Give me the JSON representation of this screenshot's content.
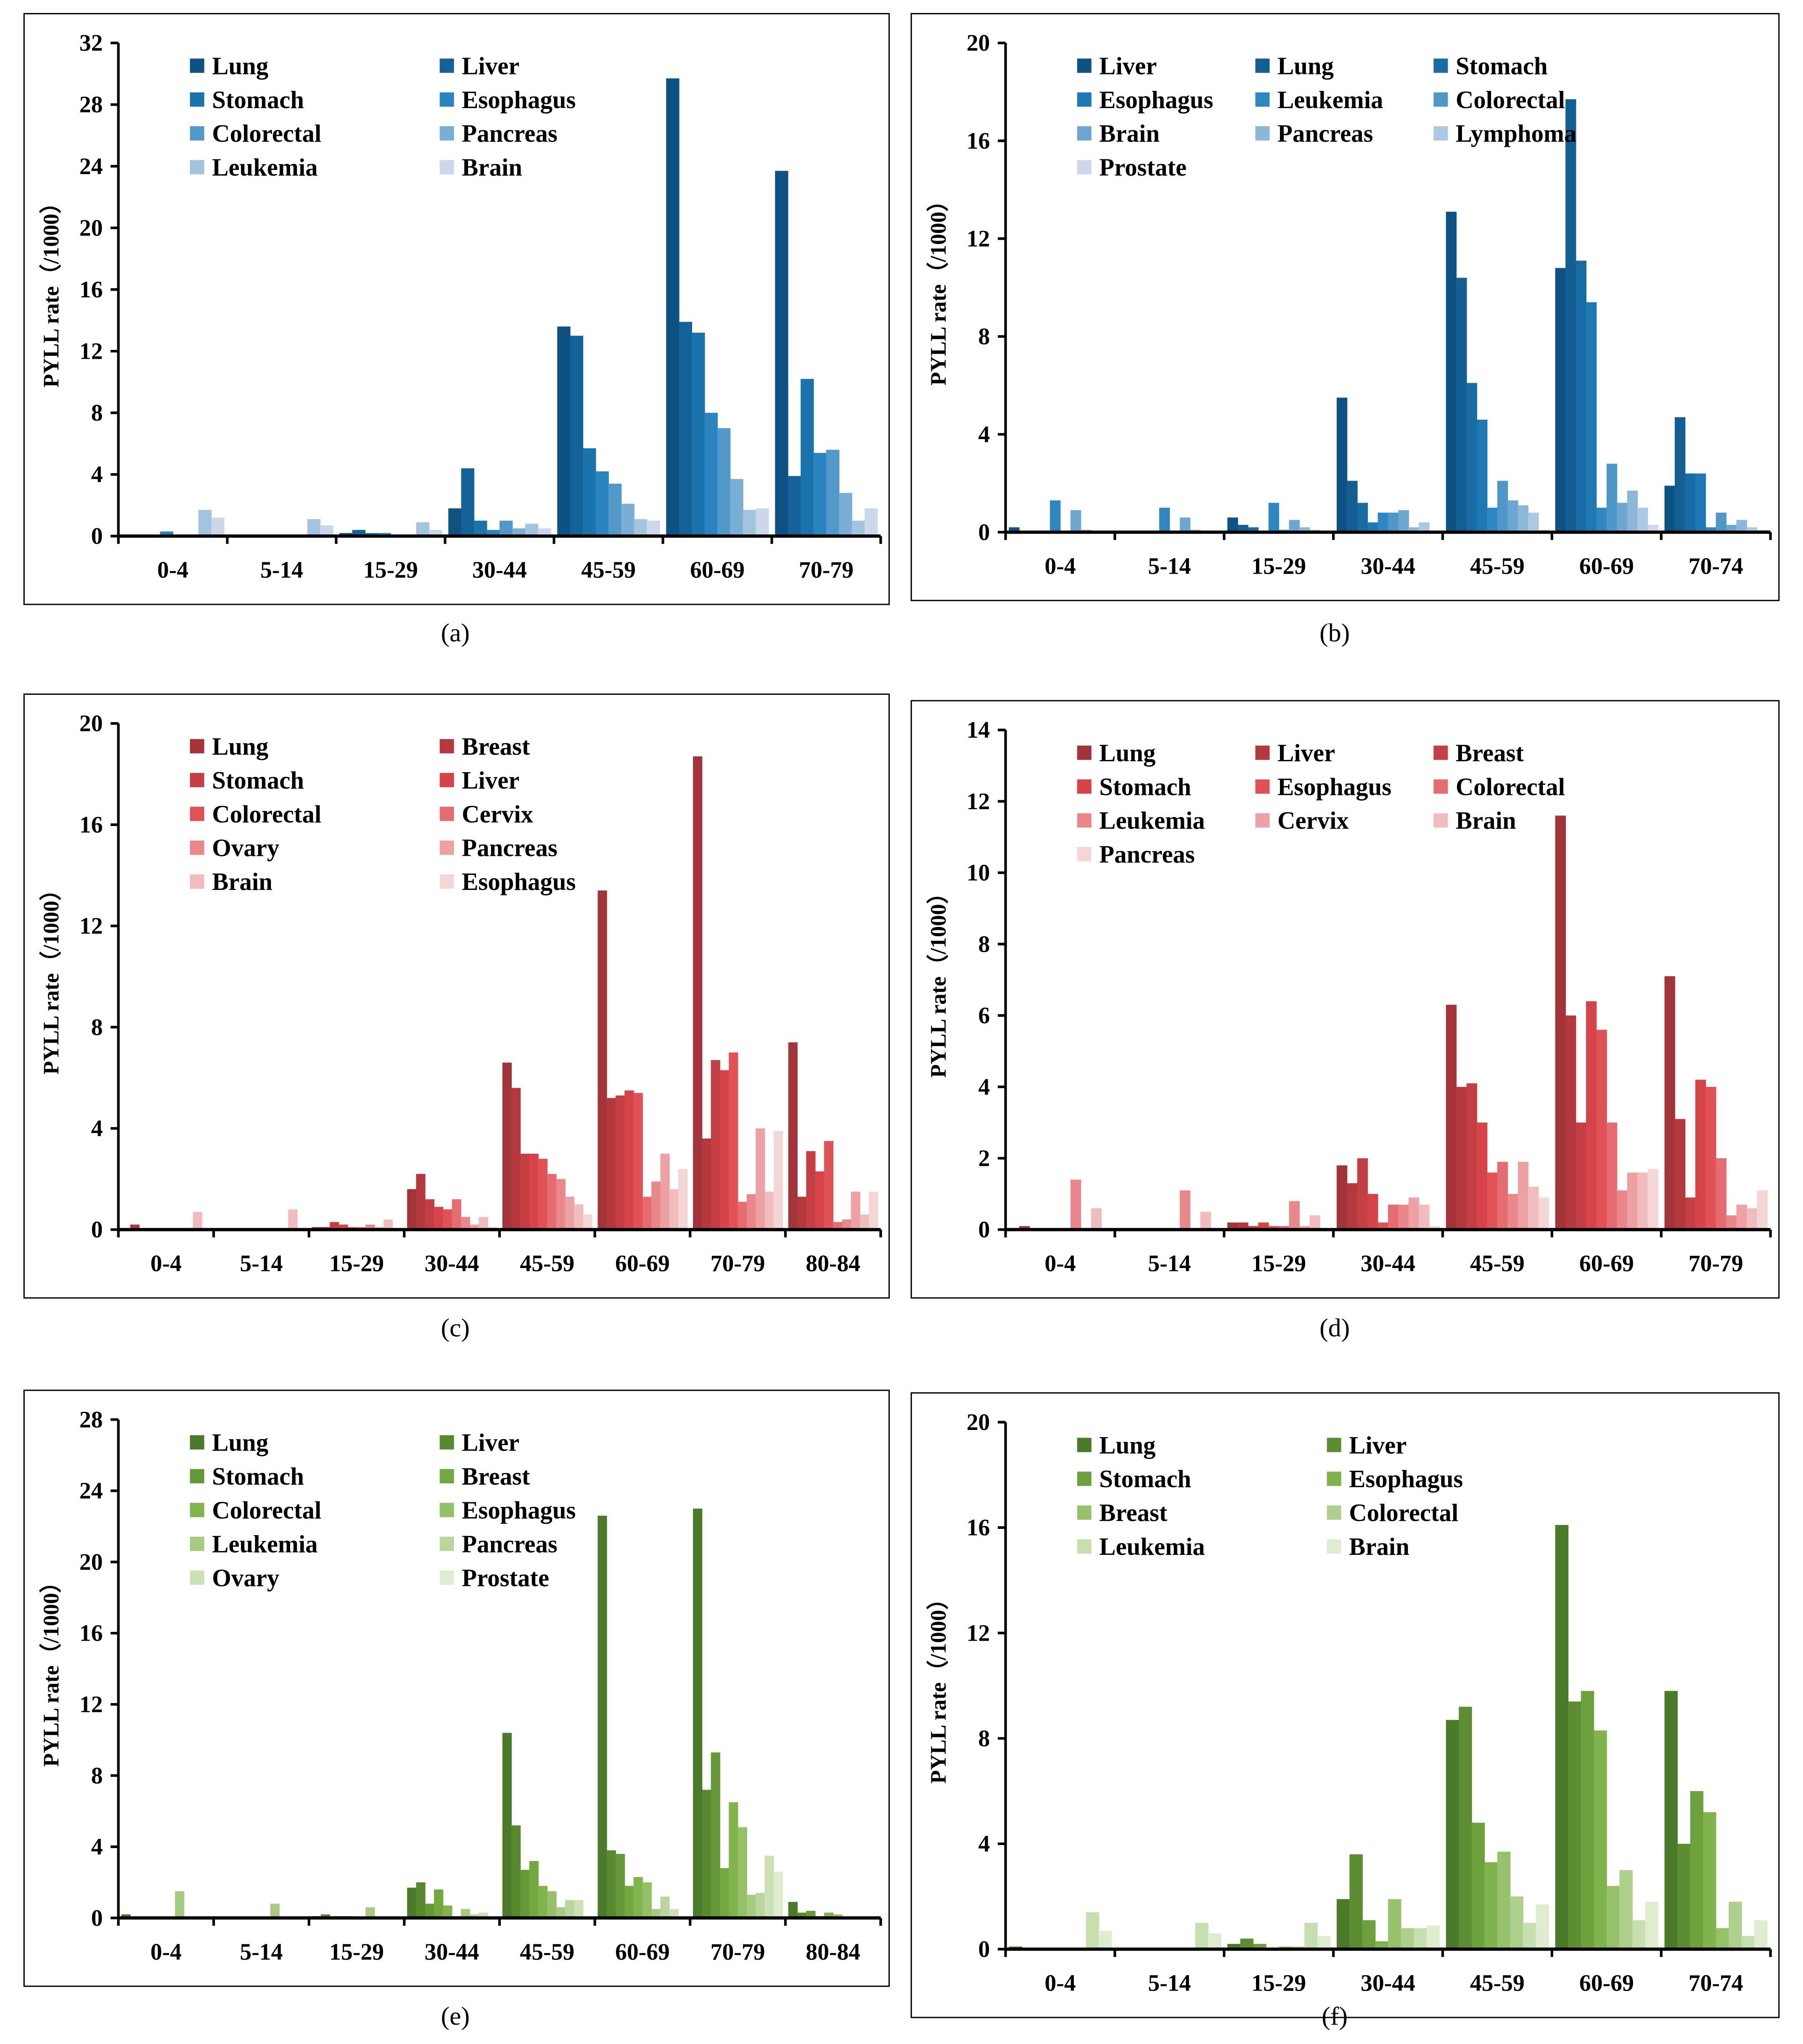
{
  "chart_data": [
    {
      "id": "a",
      "type": "bar",
      "label": "(a)",
      "ylabel": "PYLL rate（/1000）",
      "ylim": [
        0,
        32
      ],
      "ytick_step": 4,
      "legend_columns": 2,
      "palette": {
        "dark": "#0d5283",
        "mid": "#2180bd",
        "light": "#ccd8ea"
      },
      "categories": [
        "0-4",
        "5-14",
        "15-29",
        "30-44",
        "45-59",
        "60-69",
        "70-79"
      ],
      "series": [
        {
          "name": "Lung",
          "values": [
            0,
            0,
            0.2,
            1.8,
            13.6,
            29.7,
            23.7
          ]
        },
        {
          "name": "Liver",
          "values": [
            0,
            0,
            0.4,
            4.4,
            13.0,
            13.9,
            3.9
          ]
        },
        {
          "name": "Stomach",
          "values": [
            0,
            0,
            0.2,
            1.0,
            5.7,
            13.2,
            10.2
          ]
        },
        {
          "name": "Esophagus",
          "values": [
            0.3,
            0,
            0.2,
            0.4,
            4.2,
            8.0,
            5.4
          ]
        },
        {
          "name": "Colorectal",
          "values": [
            0.1,
            0,
            0.1,
            1.0,
            3.4,
            7.0,
            5.6
          ]
        },
        {
          "name": "Pancreas",
          "values": [
            0.1,
            0.1,
            0.1,
            0.5,
            2.1,
            3.7,
            2.8
          ]
        },
        {
          "name": "Leukemia",
          "values": [
            1.7,
            1.1,
            0.9,
            0.8,
            1.1,
            1.7,
            1.0
          ]
        },
        {
          "name": "Brain",
          "values": [
            1.2,
            0.7,
            0.4,
            0.5,
            1.0,
            1.8,
            1.8
          ]
        }
      ]
    },
    {
      "id": "b",
      "type": "bar",
      "label": "(b)",
      "ylabel": "PYLL rate（/1000）",
      "ylim": [
        0,
        20
      ],
      "ytick_step": 4,
      "legend_columns": 3,
      "palette": {
        "dark": "#0d5283",
        "mid": "#2180bd",
        "light": "#ccd8ea"
      },
      "categories": [
        "0-4",
        "5-14",
        "15-29",
        "30-44",
        "45-59",
        "60-69",
        "70-74"
      ],
      "series": [
        {
          "name": "Liver",
          "values": [
            0.2,
            0,
            0.6,
            5.5,
            13.1,
            10.8,
            1.9
          ]
        },
        {
          "name": "Lung",
          "values": [
            0,
            0,
            0.3,
            2.1,
            10.4,
            17.7,
            4.7
          ]
        },
        {
          "name": "Stomach",
          "values": [
            0,
            0,
            0.2,
            1.2,
            6.1,
            11.1,
            2.4
          ]
        },
        {
          "name": "Esophagus",
          "values": [
            0,
            0,
            0,
            0.4,
            4.6,
            9.4,
            2.4
          ]
        },
        {
          "name": "Leukemia",
          "values": [
            1.3,
            1.0,
            1.2,
            0.8,
            1.0,
            1.0,
            0.2
          ]
        },
        {
          "name": "Colorectal",
          "values": [
            0,
            0,
            0.1,
            0.8,
            2.1,
            2.8,
            0.8
          ]
        },
        {
          "name": "Brain",
          "values": [
            0.9,
            0.6,
            0.5,
            0.9,
            1.3,
            1.2,
            0.3
          ]
        },
        {
          "name": "Pancreas",
          "values": [
            0.1,
            0.1,
            0.2,
            0.2,
            1.1,
            1.7,
            0.5
          ]
        },
        {
          "name": "Lymphoma",
          "values": [
            0,
            0,
            0.1,
            0.4,
            0.8,
            1.0,
            0.2
          ]
        },
        {
          "name": "Prostate",
          "values": [
            0,
            0,
            0,
            0,
            0.1,
            0.3,
            0.1
          ]
        }
      ]
    },
    {
      "id": "c",
      "type": "bar",
      "label": "(c)",
      "ylabel": "PYLL rate（/1000）",
      "ylim": [
        0,
        20
      ],
      "ytick_step": 4,
      "legend_columns": 2,
      "palette": {
        "dark": "#a2343a",
        "mid": "#e0474c",
        "light": "#f4d6d7"
      },
      "categories": [
        "0-4",
        "5-14",
        "15-29",
        "30-44",
        "45-59",
        "60-69",
        "70-79",
        "80-84"
      ],
      "series": [
        {
          "name": "Lung",
          "values": [
            0,
            0,
            0.1,
            1.6,
            6.6,
            13.4,
            18.7,
            7.4
          ]
        },
        {
          "name": "Breast",
          "values": [
            0.2,
            0,
            0.1,
            2.2,
            5.6,
            5.2,
            3.6,
            1.3
          ]
        },
        {
          "name": "Stomach",
          "values": [
            0,
            0,
            0.3,
            1.2,
            3.0,
            5.3,
            6.7,
            3.1
          ]
        },
        {
          "name": "Liver",
          "values": [
            0,
            0,
            0.2,
            0.9,
            3.0,
            5.5,
            6.3,
            2.3
          ]
        },
        {
          "name": "Colorectal",
          "values": [
            0,
            0,
            0.1,
            0.8,
            2.8,
            5.4,
            7.0,
            3.5
          ]
        },
        {
          "name": "Cervix",
          "values": [
            0,
            0,
            0.1,
            1.2,
            2.2,
            1.3,
            1.1,
            0.3
          ]
        },
        {
          "name": "Ovary",
          "values": [
            0,
            0,
            0.2,
            0.5,
            2.0,
            1.9,
            1.4,
            0.4
          ]
        },
        {
          "name": "Pancreas",
          "values": [
            0,
            0,
            0.1,
            0.2,
            1.3,
            3.0,
            4.0,
            1.5
          ]
        },
        {
          "name": "Brain",
          "values": [
            0.7,
            0.8,
            0.4,
            0.5,
            1.0,
            1.6,
            1.5,
            0.6
          ]
        },
        {
          "name": "Esophagus",
          "values": [
            0,
            0,
            0,
            0.1,
            0.6,
            2.4,
            3.9,
            1.5
          ]
        }
      ]
    },
    {
      "id": "d",
      "type": "bar",
      "label": "(d)",
      "ylabel": "PYLL rate（/1000）",
      "ylim": [
        0,
        14
      ],
      "ytick_step": 2,
      "legend_columns": 3,
      "palette": {
        "dark": "#a2343a",
        "mid": "#e0474c",
        "light": "#f4d6d7"
      },
      "categories": [
        "0-4",
        "5-14",
        "15-29",
        "30-44",
        "45-59",
        "60-69",
        "70-79"
      ],
      "series": [
        {
          "name": "Lung",
          "values": [
            0,
            0,
            0.2,
            1.8,
            6.3,
            11.6,
            7.1
          ]
        },
        {
          "name": "Liver",
          "values": [
            0.1,
            0,
            0.2,
            1.3,
            4.0,
            6.0,
            3.1
          ]
        },
        {
          "name": "Breast",
          "values": [
            0,
            0,
            0.1,
            2.0,
            4.1,
            3.0,
            0.9
          ]
        },
        {
          "name": "Stomach",
          "values": [
            0,
            0,
            0.2,
            1.0,
            3.0,
            6.4,
            4.2
          ]
        },
        {
          "name": "Esophagus",
          "values": [
            0,
            0,
            0.1,
            0.2,
            1.6,
            5.6,
            4.0
          ]
        },
        {
          "name": "Colorectal",
          "values": [
            0,
            0,
            0.1,
            0.7,
            1.9,
            3.0,
            2.0
          ]
        },
        {
          "name": "Leukemia",
          "values": [
            1.4,
            1.1,
            0.8,
            0.7,
            1.0,
            1.1,
            0.4
          ]
        },
        {
          "name": "Cervix",
          "values": [
            0,
            0,
            0.1,
            0.9,
            1.9,
            1.6,
            0.7
          ]
        },
        {
          "name": "Brain",
          "values": [
            0.6,
            0.5,
            0.4,
            0.7,
            1.2,
            1.6,
            0.6
          ]
        },
        {
          "name": "Pancreas",
          "values": [
            0,
            0,
            0,
            0.1,
            0.9,
            1.7,
            1.1
          ]
        }
      ]
    },
    {
      "id": "e",
      "type": "bar",
      "label": "(e)",
      "ylabel": "PYLL rate（/1000）",
      "ylim": [
        0,
        28
      ],
      "ytick_step": 4,
      "legend_columns": 2,
      "palette": {
        "dark": "#4a7a2a",
        "mid": "#7bb044",
        "light": "#dfecd0"
      },
      "categories": [
        "0-4",
        "5-14",
        "15-29",
        "30-44",
        "45-59",
        "60-69",
        "70-79",
        "80-84"
      ],
      "series": [
        {
          "name": "Lung",
          "values": [
            0.2,
            0,
            0.1,
            1.7,
            10.4,
            22.6,
            23.0,
            0.9
          ]
        },
        {
          "name": "Liver",
          "values": [
            0,
            0,
            0.2,
            2.0,
            5.2,
            3.8,
            7.2,
            0.3
          ]
        },
        {
          "name": "Stomach",
          "values": [
            0,
            0,
            0.1,
            0.8,
            2.7,
            3.6,
            9.3,
            0.4
          ]
        },
        {
          "name": "Breast",
          "values": [
            0,
            0,
            0.1,
            1.6,
            3.2,
            1.8,
            2.8,
            0.1
          ]
        },
        {
          "name": "Colorectal",
          "values": [
            0,
            0,
            0.1,
            0.7,
            1.8,
            2.3,
            6.5,
            0.3
          ]
        },
        {
          "name": "Esophagus",
          "values": [
            0,
            0,
            0,
            0.1,
            1.5,
            2.0,
            5.1,
            0.2
          ]
        },
        {
          "name": "Leukemia",
          "values": [
            1.5,
            0.8,
            0.6,
            0.5,
            0.6,
            0.5,
            1.3,
            0
          ]
        },
        {
          "name": "Pancreas",
          "values": [
            0,
            0,
            0,
            0.2,
            1.0,
            1.2,
            1.4,
            0.1
          ]
        },
        {
          "name": "Ovary",
          "values": [
            0,
            0,
            0,
            0.3,
            1.0,
            0.5,
            3.5,
            0
          ]
        },
        {
          "name": "Prostate",
          "values": [
            0,
            0,
            0,
            0,
            0,
            0,
            2.6,
            0
          ]
        }
      ]
    },
    {
      "id": "f",
      "type": "bar",
      "label": "(f)",
      "ylabel": "PYLL rate（/1000）",
      "ylim": [
        0,
        20
      ],
      "ytick_step": 4,
      "legend_columns": 2,
      "palette": {
        "dark": "#4a7a2a",
        "mid": "#7bb044",
        "light": "#dfecd0"
      },
      "categories": [
        "0-4",
        "5-14",
        "15-29",
        "30-44",
        "45-59",
        "60-69",
        "70-74"
      ],
      "series": [
        {
          "name": "Lung",
          "values": [
            0.1,
            0,
            0.2,
            1.9,
            8.7,
            16.1,
            9.8
          ]
        },
        {
          "name": "Liver",
          "values": [
            0,
            0,
            0.4,
            3.6,
            9.2,
            9.4,
            4.0
          ]
        },
        {
          "name": "Stomach",
          "values": [
            0,
            0,
            0.2,
            1.1,
            4.8,
            9.8,
            6.0
          ]
        },
        {
          "name": "Esophagus",
          "values": [
            0,
            0,
            0,
            0.3,
            3.3,
            8.3,
            5.2
          ]
        },
        {
          "name": "Breast",
          "values": [
            0,
            0,
            0.1,
            1.9,
            3.7,
            2.4,
            0.8
          ]
        },
        {
          "name": "Colorectal",
          "values": [
            0,
            0,
            0.1,
            0.8,
            2.0,
            3.0,
            1.8
          ]
        },
        {
          "name": "Leukemia",
          "values": [
            1.4,
            1.0,
            1.0,
            0.8,
            1.0,
            1.1,
            0.5
          ]
        },
        {
          "name": "Brain",
          "values": [
            0.7,
            0.6,
            0.5,
            0.9,
            1.7,
            1.8,
            1.1
          ]
        }
      ]
    }
  ]
}
